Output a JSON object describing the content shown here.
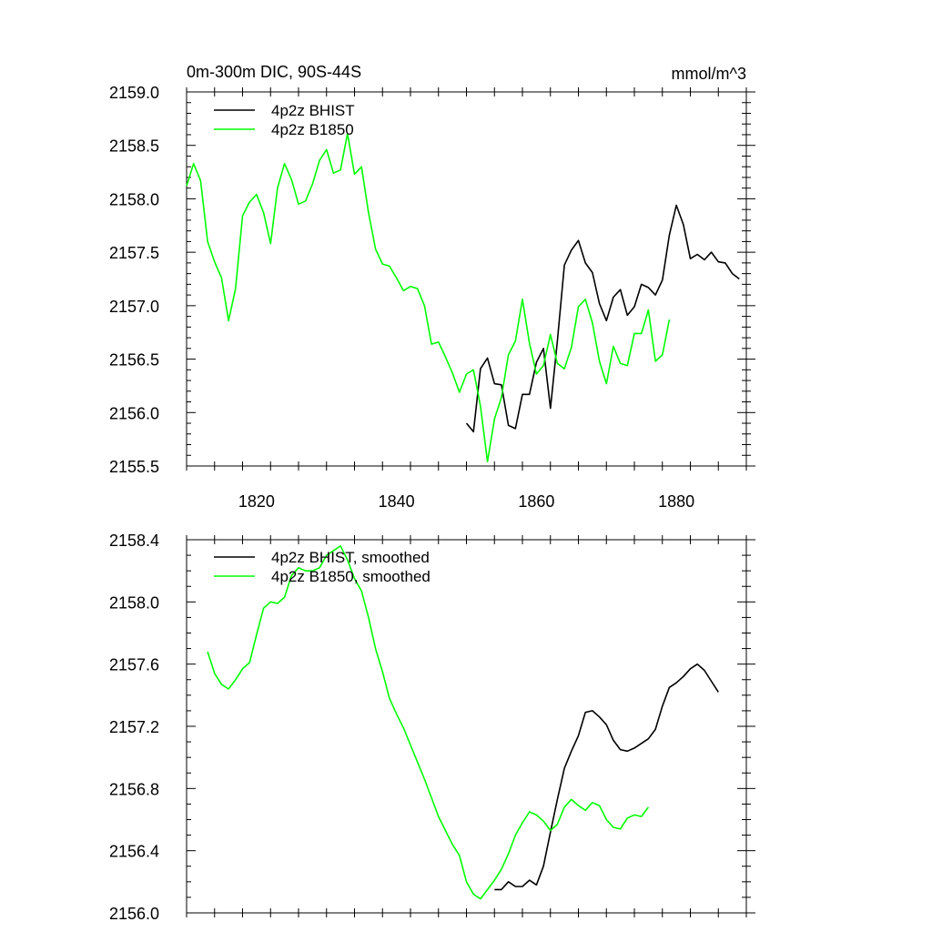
{
  "chart_data": [
    {
      "type": "line",
      "title": "0m-300m DIC, 90S-44S",
      "units": "mmol/m^3",
      "xlim": [
        1810,
        1890
      ],
      "ylim": [
        2155.5,
        2159.0
      ],
      "x_ticks": [
        1820,
        1840,
        1860,
        1880
      ],
      "x_tick_labels": [
        "1820",
        "1840",
        "1860",
        "1880"
      ],
      "y_ticks": [
        2155.5,
        2156.0,
        2156.5,
        2157.0,
        2157.5,
        2158.0,
        2158.5,
        2159.0
      ],
      "y_tick_labels": [
        "2155.5",
        "2156.0",
        "2156.5",
        "2157.0",
        "2157.5",
        "2158.0",
        "2158.5",
        "2159.0"
      ],
      "legend_position": "top-left",
      "grid": false,
      "series": [
        {
          "name": "4p2z BHIST",
          "color": "#000000",
          "x": [
            1850,
            1851,
            1852,
            1853,
            1854,
            1855,
            1856,
            1857,
            1858,
            1859,
            1860,
            1861,
            1862,
            1863,
            1864,
            1865,
            1866,
            1867,
            1868,
            1869,
            1870,
            1871,
            1872,
            1873,
            1874,
            1875,
            1876,
            1877,
            1878,
            1879,
            1880,
            1881,
            1882,
            1883,
            1884,
            1885,
            1886,
            1887,
            1888,
            1889
          ],
          "y": [
            2155.9,
            2155.82,
            2156.41,
            2156.51,
            2156.27,
            2156.26,
            2155.88,
            2155.85,
            2156.17,
            2156.17,
            2156.47,
            2156.6,
            2156.04,
            2156.67,
            2157.38,
            2157.52,
            2157.61,
            2157.4,
            2157.31,
            2157.02,
            2156.86,
            2157.08,
            2157.15,
            2156.91,
            2156.99,
            2157.2,
            2157.17,
            2157.1,
            2157.24,
            2157.66,
            2157.94,
            2157.76,
            2157.44,
            2157.48,
            2157.43,
            2157.5,
            2157.41,
            2157.4,
            2157.3,
            2157.25
          ]
        },
        {
          "name": "4p2z B1850",
          "color": "#00ff00",
          "x": [
            1810,
            1811,
            1812,
            1813,
            1814,
            1815,
            1816,
            1817,
            1818,
            1819,
            1820,
            1821,
            1822,
            1823,
            1824,
            1825,
            1826,
            1827,
            1828,
            1829,
            1830,
            1831,
            1832,
            1833,
            1834,
            1835,
            1836,
            1837,
            1838,
            1839,
            1840,
            1841,
            1842,
            1843,
            1844,
            1845,
            1846,
            1847,
            1848,
            1849,
            1850,
            1851,
            1852,
            1853,
            1854,
            1855,
            1856,
            1857,
            1858,
            1859,
            1860,
            1861,
            1862,
            1863,
            1864,
            1865,
            1866,
            1867,
            1868,
            1869,
            1870,
            1871,
            1872,
            1873,
            1874,
            1875,
            1876,
            1877,
            1878,
            1879
          ],
          "y": [
            2158.12,
            2158.33,
            2158.17,
            2157.6,
            2157.41,
            2157.26,
            2156.86,
            2157.16,
            2157.84,
            2157.97,
            2158.04,
            2157.87,
            2157.58,
            2158.1,
            2158.33,
            2158.18,
            2157.95,
            2157.98,
            2158.14,
            2158.36,
            2158.46,
            2158.24,
            2158.27,
            2158.61,
            2158.23,
            2158.3,
            2157.87,
            2157.53,
            2157.39,
            2157.37,
            2157.26,
            2157.14,
            2157.18,
            2157.16,
            2157.0,
            2156.64,
            2156.66,
            2156.52,
            2156.37,
            2156.19,
            2156.36,
            2156.4,
            2156.06,
            2155.54,
            2155.94,
            2156.14,
            2156.54,
            2156.67,
            2157.06,
            2156.65,
            2156.36,
            2156.44,
            2156.73,
            2156.46,
            2156.41,
            2156.61,
            2156.99,
            2157.06,
            2156.84,
            2156.48,
            2156.27,
            2156.62,
            2156.46,
            2156.44,
            2156.74,
            2156.74,
            2156.96,
            2156.48,
            2156.54,
            2156.87
          ]
        }
      ]
    },
    {
      "type": "line",
      "title": "",
      "xlim": [
        1810,
        1890
      ],
      "ylim": [
        2156.0,
        2158.4
      ],
      "x_ticks": [
        1820,
        1840,
        1860,
        1880
      ],
      "x_tick_labels": [],
      "y_ticks": [
        2156.0,
        2156.4,
        2156.8,
        2157.2,
        2157.6,
        2158.0,
        2158.4
      ],
      "y_tick_labels": [
        "2156.0",
        "2156.4",
        "2156.8",
        "2157.2",
        "2157.6",
        "2158.0",
        "2158.4"
      ],
      "legend_position": "top-left",
      "grid": false,
      "series": [
        {
          "name": "4p2z BHIST, smoothed",
          "color": "#000000",
          "x": [
            1854,
            1855,
            1856,
            1857,
            1858,
            1859,
            1860,
            1861,
            1862,
            1863,
            1864,
            1865,
            1866,
            1867,
            1868,
            1869,
            1870,
            1871,
            1872,
            1873,
            1874,
            1875,
            1876,
            1877,
            1878,
            1879,
            1880,
            1881,
            1882,
            1883,
            1884,
            1885,
            1886
          ],
          "y": [
            2156.15,
            2156.15,
            2156.2,
            2156.17,
            2156.17,
            2156.21,
            2156.18,
            2156.3,
            2156.52,
            2156.73,
            2156.93,
            2157.04,
            2157.14,
            2157.29,
            2157.3,
            2157.26,
            2157.21,
            2157.11,
            2157.05,
            2157.04,
            2157.06,
            2157.09,
            2157.12,
            2157.18,
            2157.33,
            2157.45,
            2157.48,
            2157.52,
            2157.57,
            2157.6,
            2157.56,
            2157.49,
            2157.42
          ]
        },
        {
          "name": "4p2z B1850, smoothed",
          "color": "#00ff00",
          "x": [
            1813,
            1814,
            1815,
            1816,
            1817,
            1818,
            1819,
            1820,
            1821,
            1822,
            1823,
            1824,
            1825,
            1826,
            1827,
            1828,
            1829,
            1830,
            1831,
            1832,
            1833,
            1834,
            1835,
            1836,
            1837,
            1838,
            1839,
            1840,
            1841,
            1842,
            1843,
            1844,
            1845,
            1846,
            1847,
            1848,
            1849,
            1850,
            1851,
            1852,
            1853,
            1854,
            1855,
            1856,
            1857,
            1858,
            1859,
            1860,
            1861,
            1862,
            1863,
            1864,
            1865,
            1866,
            1867,
            1868,
            1869,
            1870,
            1871,
            1872,
            1873,
            1874,
            1875,
            1876
          ],
          "y": [
            2157.68,
            2157.54,
            2157.47,
            2157.44,
            2157.5,
            2157.57,
            2157.61,
            2157.79,
            2157.96,
            2158.0,
            2157.99,
            2158.03,
            2158.17,
            2158.22,
            2158.2,
            2158.2,
            2158.22,
            2158.3,
            2158.33,
            2158.36,
            2158.27,
            2158.15,
            2158.07,
            2157.9,
            2157.7,
            2157.55,
            2157.38,
            2157.28,
            2157.19,
            2157.08,
            2156.97,
            2156.86,
            2156.74,
            2156.62,
            2156.53,
            2156.44,
            2156.37,
            2156.2,
            2156.12,
            2156.09,
            2156.15,
            2156.21,
            2156.28,
            2156.38,
            2156.5,
            2156.58,
            2156.65,
            2156.63,
            2156.59,
            2156.53,
            2156.57,
            2156.68,
            2156.73,
            2156.69,
            2156.66,
            2156.71,
            2156.69,
            2156.6,
            2156.55,
            2156.54,
            2156.61,
            2156.63,
            2156.62,
            2156.68
          ]
        }
      ]
    }
  ]
}
